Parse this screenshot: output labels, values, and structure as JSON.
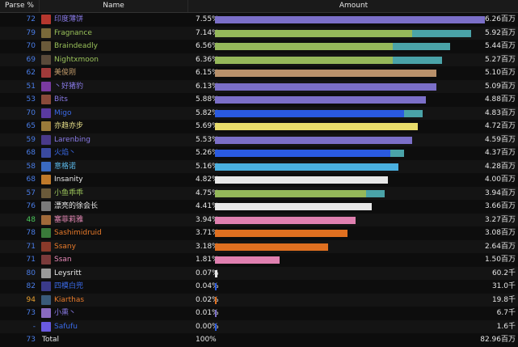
{
  "header": {
    "parse": "Parse %",
    "name": "Name",
    "amount": "Amount"
  },
  "rows": [
    {
      "parse": "72",
      "parse_color": "#4a7de8",
      "name": "印度薄饼",
      "name_color": "#8a7be8",
      "pct": "7.55%",
      "amt": "6.26百万",
      "frac": 1.0,
      "frac2": 0.0,
      "c1": "#7b6fc8",
      "c2": "#7b6fc8",
      "icon": "warrior-icon",
      "icon_color": "#b5372e"
    },
    {
      "parse": "79",
      "parse_color": "#4a7de8",
      "name": "Fragnance",
      "name_color": "#9ac25a",
      "pct": "7.14%",
      "amt": "5.92百万",
      "frac": 0.73,
      "frac2": 0.22,
      "c1": "#95b85a",
      "c2": "#4aa3a8",
      "icon": "hunter-icon",
      "icon_color": "#7a6a3a"
    },
    {
      "parse": "70",
      "parse_color": "#4a7de8",
      "name": "Braindeadly",
      "name_color": "#9ac25a",
      "pct": "6.56%",
      "amt": "5.44百万",
      "frac": 0.66,
      "frac2": 0.21,
      "c1": "#95b85a",
      "c2": "#4aa3a8",
      "icon": "hunter-icon",
      "icon_color": "#6a5a3a"
    },
    {
      "parse": "69",
      "parse_color": "#4a7de8",
      "name": "Nightxmoon",
      "name_color": "#9ac25a",
      "pct": "6.36%",
      "amt": "5.27百万",
      "frac": 0.66,
      "frac2": 0.18,
      "c1": "#95b85a",
      "c2": "#4aa3a8",
      "icon": "hunter-icon",
      "icon_color": "#5a4a3a"
    },
    {
      "parse": "62",
      "parse_color": "#4a7de8",
      "name": "美俊刚",
      "name_color": "#c09a6a",
      "pct": "6.15%",
      "amt": "5.10百万",
      "frac": 0.82,
      "frac2": 0.0,
      "c1": "#b8906a",
      "c2": "#b8906a",
      "icon": "warrior-icon",
      "icon_color": "#a03a3a"
    },
    {
      "parse": "51",
      "parse_color": "#4a7de8",
      "name": "丶好猪豹",
      "name_color": "#8a7be8",
      "pct": "6.13%",
      "amt": "5.09百万",
      "frac": 0.82,
      "frac2": 0.0,
      "c1": "#7b6fc8",
      "c2": "#7b6fc8",
      "icon": "warlock-icon",
      "icon_color": "#7a3aa0"
    },
    {
      "parse": "53",
      "parse_color": "#4a7de8",
      "name": "Bits",
      "name_color": "#8a7be8",
      "pct": "5.88%",
      "amt": "4.88百万",
      "frac": 0.78,
      "frac2": 0.0,
      "c1": "#7b6fc8",
      "c2": "#7b6fc8",
      "icon": "warlock-icon",
      "icon_color": "#8a4a3a"
    },
    {
      "parse": "70",
      "parse_color": "#4a7de8",
      "name": "Migo",
      "name_color": "#3a6ae8",
      "pct": "5.82%",
      "amt": "4.83百万",
      "frac": 0.7,
      "frac2": 0.07,
      "c1": "#2a5ae0",
      "c2": "#4aa3a8",
      "icon": "shaman-icon",
      "icon_color": "#5a3aa0"
    },
    {
      "parse": "65",
      "parse_color": "#4a7de8",
      "name": "亦趋亦步",
      "name_color": "#e8e08a",
      "pct": "5.69%",
      "amt": "4.72百万",
      "frac": 0.75,
      "frac2": 0.0,
      "c1": "#e8dc6a",
      "c2": "#e8dc6a",
      "icon": "rogue-icon",
      "icon_color": "#9a7a3a"
    },
    {
      "parse": "59",
      "parse_color": "#4a7de8",
      "name": "Larenbing",
      "name_color": "#8a7be8",
      "pct": "5.53%",
      "amt": "4.59百万",
      "frac": 0.73,
      "frac2": 0.0,
      "c1": "#7b6fc8",
      "c2": "#7b6fc8",
      "icon": "warlock-icon",
      "icon_color": "#4a3a8a"
    },
    {
      "parse": "68",
      "parse_color": "#4a7de8",
      "name": "火焰丶",
      "name_color": "#3a6ae8",
      "pct": "5.26%",
      "amt": "4.37百万",
      "frac": 0.65,
      "frac2": 0.05,
      "c1": "#2a5ae0",
      "c2": "#4aa3a8",
      "icon": "shaman-icon",
      "icon_color": "#3a4aa0"
    },
    {
      "parse": "58",
      "parse_color": "#4a7de8",
      "name": "意格诺",
      "name_color": "#5ab8e8",
      "pct": "5.16%",
      "amt": "4.28百万",
      "frac": 0.68,
      "frac2": 0.0,
      "c1": "#4ab0e0",
      "c2": "#4ab0e0",
      "icon": "mage-icon",
      "icon_color": "#3a6ac0"
    },
    {
      "parse": "68",
      "parse_color": "#4a7de8",
      "name": "Insanity",
      "name_color": "#e8e8e8",
      "pct": "4.82%",
      "amt": "4.00百万",
      "frac": 0.64,
      "frac2": 0.0,
      "c1": "#e8e8e8",
      "c2": "#e8e8e8",
      "icon": "priest-icon",
      "icon_color": "#c07a2a"
    },
    {
      "parse": "57",
      "parse_color": "#4a7de8",
      "name": "小鱼乖乖",
      "name_color": "#9ac25a",
      "pct": "4.75%",
      "amt": "3.94百万",
      "frac": 0.56,
      "frac2": 0.07,
      "c1": "#95b85a",
      "c2": "#4aa3a8",
      "icon": "hunter-icon",
      "icon_color": "#6a5a3a"
    },
    {
      "parse": "76",
      "parse_color": "#4a7de8",
      "name": "漂亮的徐会长",
      "name_color": "#e8e8e8",
      "pct": "4.41%",
      "amt": "3.66百万",
      "frac": 0.58,
      "frac2": 0.0,
      "c1": "#e8e8e8",
      "c2": "#e8e8e8",
      "icon": "priest-icon",
      "icon_color": "#7a7a7a"
    },
    {
      "parse": "48",
      "parse_color": "#4ac85a",
      "name": "塞菲莉雅",
      "name_color": "#e88ab8",
      "pct": "3.94%",
      "amt": "3.27百万",
      "frac": 0.52,
      "frac2": 0.0,
      "c1": "#e080b0",
      "c2": "#e080b0",
      "icon": "paladin-icon",
      "icon_color": "#a06a3a"
    },
    {
      "parse": "78",
      "parse_color": "#4a7de8",
      "name": "Sashimidruid",
      "name_color": "#e87a2a",
      "pct": "3.71%",
      "amt": "3.08百万",
      "frac": 0.49,
      "frac2": 0.0,
      "c1": "#e07020",
      "c2": "#e07020",
      "icon": "druid-icon",
      "icon_color": "#3a7a3a"
    },
    {
      "parse": "71",
      "parse_color": "#4a7de8",
      "name": "Ssany",
      "name_color": "#e87a2a",
      "pct": "3.18%",
      "amt": "2.64百万",
      "frac": 0.42,
      "frac2": 0.0,
      "c1": "#e07020",
      "c2": "#e07020",
      "icon": "druid-icon",
      "icon_color": "#8a3a2a"
    },
    {
      "parse": "71",
      "parse_color": "#4a7de8",
      "name": "Ssan",
      "name_color": "#e88ab8",
      "pct": "1.81%",
      "amt": "1.50百万",
      "frac": 0.24,
      "frac2": 0.0,
      "c1": "#e080b0",
      "c2": "#e080b0",
      "icon": "paladin-icon",
      "icon_color": "#7a3a3a"
    },
    {
      "parse": "80",
      "parse_color": "#4a7de8",
      "name": "Leysritt",
      "name_color": "#e8e8e8",
      "pct": "0.07%",
      "amt": "60.2千",
      "frac": 0.01,
      "frac2": 0.0,
      "c1": "#e8e8e8",
      "c2": "#e8e8e8",
      "icon": "priest-icon",
      "icon_color": "#9a9a9a"
    },
    {
      "parse": "82",
      "parse_color": "#4a7de8",
      "name": "四模白兜",
      "name_color": "#3a6ae8",
      "pct": "0.04%",
      "amt": "31.0千",
      "frac": 0.006,
      "frac2": 0.0,
      "c1": "#2a5ae0",
      "c2": "#2a5ae0",
      "icon": "shaman-icon",
      "icon_color": "#3a3a8a"
    },
    {
      "parse": "94",
      "parse_color": "#e8a030",
      "name": "Kiarthas",
      "name_color": "#e87a2a",
      "pct": "0.02%",
      "amt": "19.8千",
      "frac": 0.004,
      "frac2": 0.0,
      "c1": "#e07020",
      "c2": "#e07020",
      "icon": "druid-icon",
      "icon_color": "#3a5a7a"
    },
    {
      "parse": "73",
      "parse_color": "#4a7de8",
      "name": "小熏丶",
      "name_color": "#8a7be8",
      "pct": "0.01%",
      "amt": "6.7千",
      "frac": 0.002,
      "frac2": 0.0,
      "c1": "#7b6fc8",
      "c2": "#7b6fc8",
      "icon": "warlock-icon",
      "icon_color": "#8a6ac0"
    },
    {
      "parse": "-",
      "parse_color": "#4a7de8",
      "name": "Safufu",
      "name_color": "#3a6ae8",
      "pct": "0.00%",
      "amt": "1.6千",
      "frac": 0.001,
      "frac2": 0.0,
      "c1": "#2a5ae0",
      "c2": "#2a5ae0",
      "icon": "shaman-icon",
      "icon_color": "#6a5ae0"
    },
    {
      "parse": "73",
      "parse_color": "#4a7de8",
      "name": "Total",
      "name_color": "#e8e8e8",
      "pct": "100%",
      "amt": "82.96百万",
      "frac": 0,
      "frac2": 0.0,
      "c1": "#000",
      "c2": "#000",
      "icon": "",
      "icon_color": ""
    }
  ]
}
